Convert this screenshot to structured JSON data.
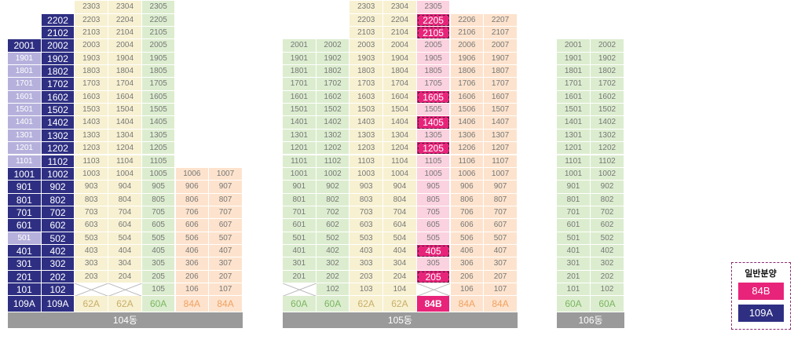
{
  "buildings": [
    {
      "name": "104동",
      "columns": [
        {
          "type": "109A",
          "type_color": "navy",
          "lines": "01",
          "floors_top": 20,
          "sold_color": "lav",
          "navy_floors": [
            20,
            10,
            9,
            8,
            7,
            6,
            4,
            3,
            2,
            1
          ],
          "lav_floors": [
            19,
            18,
            17,
            16,
            15,
            14,
            13,
            12,
            11,
            5
          ],
          "empty": []
        },
        {
          "type": "109A",
          "type_color": "navy",
          "lines": "02",
          "floors_top": 22,
          "navy_all": true,
          "empty": []
        },
        {
          "type": "62A",
          "type_color": "yellow",
          "lines": "03",
          "floors_top": 23,
          "empty": [
            1
          ]
        },
        {
          "type": "62A",
          "type_color": "yellow",
          "lines": "04",
          "floors_top": 23,
          "empty": [
            1
          ]
        },
        {
          "type": "60A",
          "type_color": "green",
          "lines": "05",
          "floors_top": 23,
          "empty": []
        },
        {
          "type": "84A",
          "type_color": "orange",
          "lines": "06",
          "floors_top": 10,
          "empty": []
        },
        {
          "type": "84A",
          "type_color": "orange",
          "lines": "07",
          "floors_top": 10,
          "empty": []
        }
      ]
    },
    {
      "name": "105동",
      "columns": [
        {
          "type": "60A",
          "type_color": "green",
          "lines": "01",
          "floors_top": 20,
          "empty": [
            1
          ]
        },
        {
          "type": "60A",
          "type_color": "green",
          "lines": "02",
          "floors_top": 20,
          "empty": []
        },
        {
          "type": "62A",
          "type_color": "yellow",
          "lines": "03",
          "floors_top": 23,
          "empty": []
        },
        {
          "type": "62A",
          "type_color": "yellow",
          "lines": "04",
          "floors_top": 23,
          "empty": []
        },
        {
          "type": "84B",
          "type_color": "hot",
          "lines": "05",
          "floors_top": 23,
          "empty": [
            1
          ],
          "hot_floors": [
            22,
            21,
            16,
            14,
            12,
            4,
            2
          ]
        },
        {
          "type": "84A",
          "type_color": "orange",
          "lines": "06",
          "floors_top": 22,
          "empty": []
        },
        {
          "type": "84A",
          "type_color": "orange",
          "lines": "07",
          "floors_top": 22,
          "empty": []
        }
      ]
    },
    {
      "name": "106동",
      "columns": [
        {
          "type": "60A",
          "type_color": "green",
          "lines": "01",
          "floors_top": 20,
          "empty": []
        },
        {
          "type": "60A",
          "type_color": "green",
          "lines": "02",
          "floors_top": 20,
          "empty": []
        }
      ]
    }
  ],
  "legend": {
    "title": "일반분양",
    "items": [
      "84B",
      "109A"
    ]
  },
  "colors": {
    "navy": "#2e2f82",
    "hot_pink": "#e8247a",
    "pink": "#fbd2df",
    "green": "#dcedcf",
    "yellow": "#f7f1d2",
    "orange": "#fde3cd",
    "lavender": "#b6b1dc",
    "label_gray": "#9a9a9a"
  }
}
